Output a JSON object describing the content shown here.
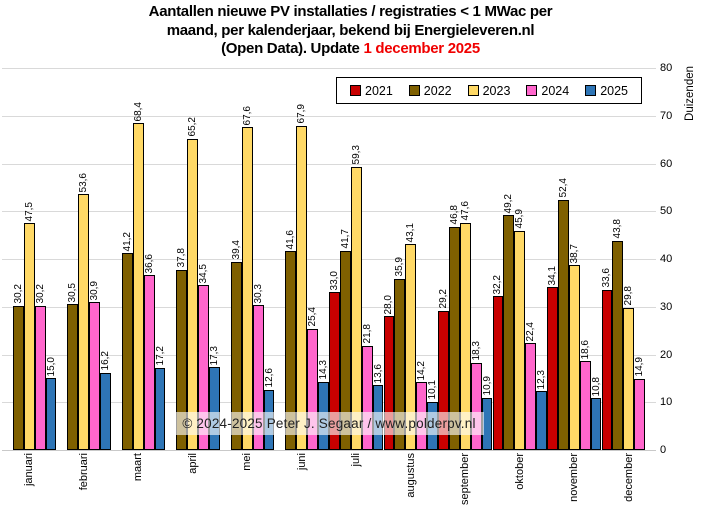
{
  "title": {
    "line1": "Aantallen nieuwe PV installaties / registraties < 1 MWac per",
    "line2": "maand, per kalenderjaar, bekend bij Energieleveren.nl",
    "line3_prefix": "(Open Data). Update ",
    "line3_highlight": "1 december 2025",
    "highlight_color": "#f00000"
  },
  "watermark": {
    "text": "© 2024-2025  Peter J. Segaar / www.polderpv.nl"
  },
  "y_axis": {
    "label": "Duizenden",
    "ticks": [
      0,
      10,
      20,
      30,
      40,
      50,
      60,
      70,
      80
    ],
    "max": 80
  },
  "chart_data": {
    "type": "bar",
    "title": "Aantallen nieuwe PV installaties / registraties < 1 MWac per maand, per kalenderjaar, bekend bij Energieleveren.nl (Open Data). Update 1 december 2025",
    "categories": [
      "januari",
      "februari",
      "maart",
      "april",
      "mei",
      "juni",
      "juli",
      "augustus",
      "september",
      "oktober",
      "november",
      "december"
    ],
    "series": [
      {
        "name": "2021",
        "color": "#c80000",
        "values": [
          null,
          null,
          null,
          null,
          null,
          null,
          33.0,
          28.0,
          29.2,
          32.2,
          34.1,
          33.6
        ]
      },
      {
        "name": "2022",
        "color": "#7f6000",
        "values": [
          30.2,
          30.5,
          41.2,
          37.8,
          39.4,
          41.6,
          41.7,
          35.9,
          46.8,
          49.2,
          52.4,
          43.8
        ]
      },
      {
        "name": "2023",
        "color": "#ffd966",
        "values": [
          47.5,
          53.6,
          68.4,
          65.2,
          67.6,
          67.9,
          59.3,
          43.1,
          47.6,
          45.9,
          38.7,
          29.8
        ]
      },
      {
        "name": "2024",
        "color": "#ff66cc",
        "values": [
          30.2,
          30.9,
          36.6,
          34.5,
          30.3,
          25.4,
          21.8,
          14.2,
          18.3,
          22.4,
          18.6,
          14.9
        ]
      },
      {
        "name": "2025",
        "color": "#2e75b6",
        "values": [
          15.0,
          16.2,
          17.2,
          17.3,
          12.6,
          14.3,
          13.6,
          10.1,
          10.9,
          12.3,
          10.8,
          null
        ]
      }
    ],
    "xlabel": "",
    "ylabel": "Duizenden",
    "ylim": [
      0,
      80
    ],
    "grid": true,
    "gridline_color": "#d9d9d9",
    "legend_position": "top",
    "value_label_format": "one decimal, comma separator, rotated 90°"
  }
}
